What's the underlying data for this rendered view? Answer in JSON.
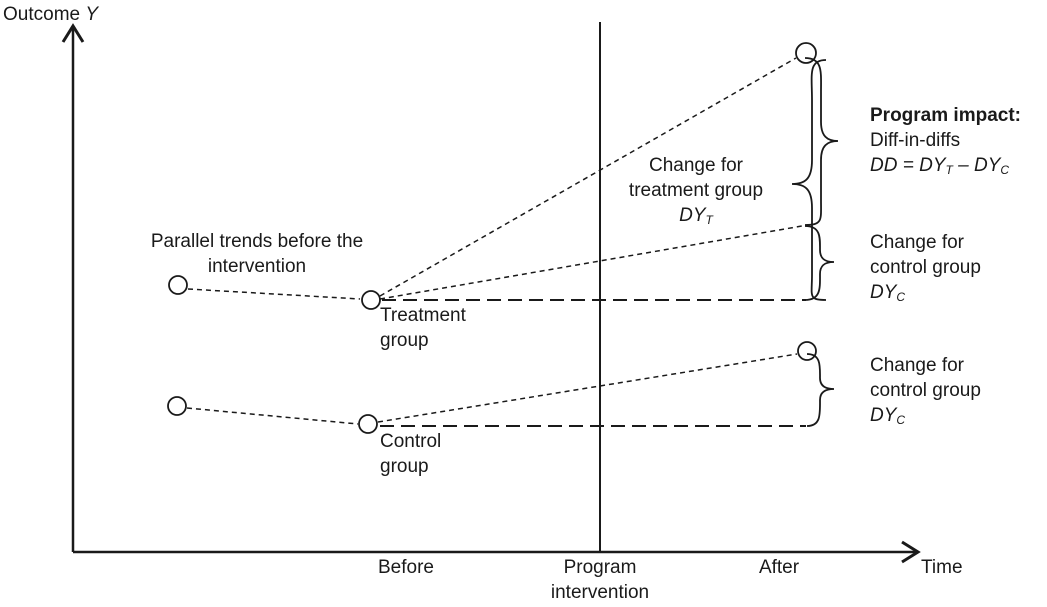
{
  "axes": {
    "y_label": "Outcome",
    "y_var": "Y",
    "x_label": "Time",
    "ticks": {
      "before": "Before",
      "intervention": "Program intervention",
      "after": "After"
    }
  },
  "annotations": {
    "parallel_trends": "Parallel trends before the intervention",
    "treatment_group": "Treatment group",
    "control_group": "Control group",
    "change_treatment": "Change for treatment group",
    "change_treatment_var": "DY",
    "change_treatment_sub": "T",
    "impact_title": "Program impact:",
    "impact_sub": "Diff-in-diffs",
    "impact_formula": {
      "lhs": "DD = DY",
      "sub_t": "T",
      "mid": " – DY",
      "sub_c": "C"
    },
    "change_control": "Change for control group",
    "change_control_var": "DY",
    "change_control_sub": "C"
  },
  "colors": {
    "ink": "#1a1a1a",
    "background": "#ffffff"
  }
}
